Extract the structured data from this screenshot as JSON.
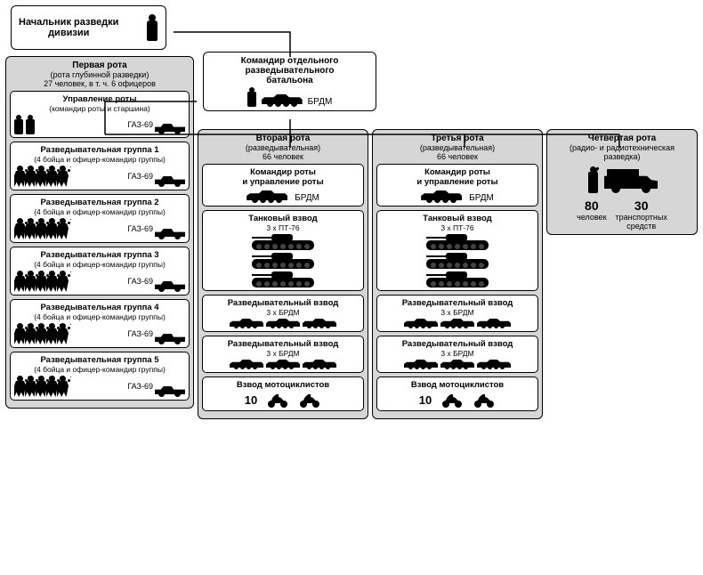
{
  "colors": {
    "bg": "#ffffff",
    "shade": "#d6d6d6",
    "line": "#000000",
    "silhouette": "#000000"
  },
  "line_width": 1.5,
  "chief": {
    "title_l1": "Начальник разведки",
    "title_l2": "дивизии"
  },
  "commander": {
    "l1": "Командир отдельного",
    "l2": "разведывательного",
    "l3": "батальона",
    "vehicle_label": "БРДМ"
  },
  "company1": {
    "name": "Первая рота",
    "desc": "(рота глубинной разведки)",
    "count": "27 человек, в т. ч. 6 офицеров",
    "hq": {
      "t1": "Управление роты",
      "t2": "(командир роты и старшина)",
      "veh": "ГАЗ-69"
    },
    "groups": [
      {
        "t1": "Разведывательная группа 1",
        "t2": "(4 бойца и офицер-командир группы)",
        "veh": "ГАЗ-69"
      },
      {
        "t1": "Разведывательная группа 2",
        "t2": "(4 бойца и офицер-командир группы)",
        "veh": "ГАЗ-69"
      },
      {
        "t1": "Разведывательная группа 3",
        "t2": "(4 бойца и офицер-командир группы)",
        "veh": "ГАЗ-69"
      },
      {
        "t1": "Разведывательная группа 4",
        "t2": "(4 бойца и офицер-командир группы)",
        "veh": "ГАЗ-69"
      },
      {
        "t1": "Разведывательная группа 5",
        "t2": "(4 бойца и офицер-командир группы)",
        "veh": "ГАЗ-69"
      }
    ]
  },
  "company2": {
    "name": "Вторая рота",
    "desc": "(разведывательная)",
    "count": "66 человек",
    "hq": {
      "t1": "Командир роты",
      "t2": "и управление роты",
      "veh": "БРДМ"
    },
    "tank": {
      "t1": "Танковый взвод",
      "t2": "3 х ПТ-76",
      "qty": 3
    },
    "brdm1": {
      "t1": "Разведывательный взвод",
      "t2": "3 х БРДМ",
      "qty": 3
    },
    "brdm2": {
      "t1": "Разведывательный взвод",
      "t2": "3 х БРДМ",
      "qty": 3
    },
    "moto": {
      "t1": "Взвод мотоциклистов",
      "count": "10"
    }
  },
  "company3": {
    "name": "Третья рота",
    "desc": "(разведывательная)",
    "count": "66 человек",
    "hq": {
      "t1": "Командир роты",
      "t2": "и управление роты",
      "veh": "БРДМ"
    },
    "tank": {
      "t1": "Танковый взвод",
      "t2": "3 х ПТ-76",
      "qty": 3
    },
    "brdm1": {
      "t1": "Разведывательный взвод",
      "t2": "3 х БРДМ",
      "qty": 3
    },
    "brdm2": {
      "t1": "Разведывательный взвод",
      "t2": "3 х БРДМ",
      "qty": 3
    },
    "moto": {
      "t1": "Взвод мотоциклистов",
      "count": "10"
    }
  },
  "company4": {
    "name": "Четвертая рота",
    "desc": "(радио- и радиотехническая разведка)",
    "people_num": "80",
    "people_lbl": "человек",
    "veh_num": "30",
    "veh_lbl_l1": "транспортных",
    "veh_lbl_l2": "средств"
  }
}
